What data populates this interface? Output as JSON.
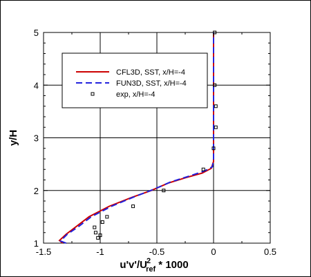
{
  "chart_data": {
    "type": "line",
    "xlabel": {
      "main": "u'v'/U",
      "sub": "ref",
      "sup": "2",
      "tail": " * 1000"
    },
    "ylabel": "y/H",
    "xlim": [
      -1.5,
      0.5
    ],
    "ylim": [
      1,
      5
    ],
    "xticks": [
      -1.5,
      -1,
      -0.5,
      0,
      0.5
    ],
    "yticks": [
      1,
      2,
      3,
      4,
      5
    ],
    "xtick_labels": [
      "-1.5",
      "-1",
      "-0.5",
      "0",
      "0.5"
    ],
    "ytick_labels": [
      "1",
      "2",
      "3",
      "4",
      "5"
    ],
    "grid": true,
    "legend_position": "upper-left",
    "series": [
      {
        "name": "CFL3D, SST, x/H=-4",
        "style": "solid",
        "color": "#cc0000",
        "x": [
          -1.33,
          -1.36,
          -1.3,
          -1.22,
          -1.1,
          -0.92,
          -0.72,
          -0.55,
          -0.4,
          -0.25,
          -0.1,
          -0.02,
          0.0,
          0.0,
          0.0
        ],
        "y": [
          1.0,
          1.05,
          1.17,
          1.3,
          1.5,
          1.7,
          1.87,
          2.0,
          2.14,
          2.24,
          2.33,
          2.42,
          2.55,
          3.0,
          5.0
        ]
      },
      {
        "name": "FUN3D, SST, x/H=-4",
        "style": "dashed",
        "color": "#2222dd",
        "x": [
          -1.3,
          -1.35,
          -1.29,
          -1.2,
          -1.08,
          -0.9,
          -0.7,
          -0.53,
          -0.38,
          -0.22,
          -0.08,
          -0.01,
          0.0,
          0.0,
          0.0
        ],
        "y": [
          1.0,
          1.04,
          1.17,
          1.3,
          1.5,
          1.7,
          1.88,
          2.02,
          2.16,
          2.27,
          2.37,
          2.45,
          2.6,
          3.0,
          5.0
        ]
      },
      {
        "name": "exp, x/H=-4",
        "style": "markers",
        "color": "#000000",
        "x": [
          0.01,
          0.01,
          0.02,
          0.02,
          0.0,
          -0.09,
          -0.44,
          -0.71,
          -0.94,
          -0.98,
          -1.0,
          -1.02,
          -1.04,
          -1.05
        ],
        "y": [
          5.0,
          4.0,
          3.6,
          3.2,
          2.8,
          2.4,
          2.0,
          1.7,
          1.5,
          1.4,
          1.15,
          1.1,
          1.2,
          1.3
        ]
      }
    ]
  }
}
